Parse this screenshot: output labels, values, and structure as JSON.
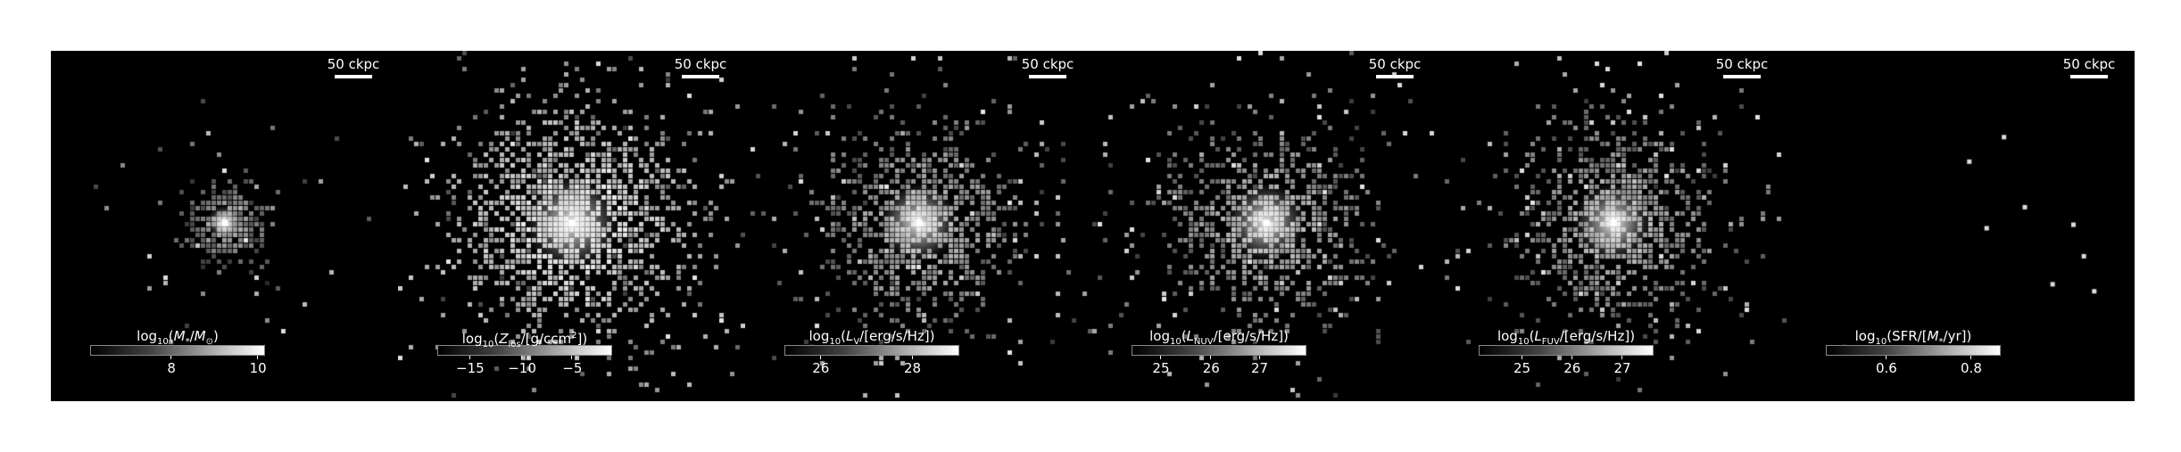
{
  "scale_label": "50 ckpc",
  "panels": [
    {
      "colorbar_title_html": "log<sub>10</sub>(<i>M</i><sub>*</sub>/<i>M</i><sub>⊙</sub>)",
      "ticks": [
        {
          "label": "8",
          "frac": 0.47
        },
        {
          "label": "10",
          "frac": 0.97
        }
      ],
      "style": "compact",
      "seed": 11
    },
    {
      "colorbar_title_html": "log<sub>10</sub>(<i>Z</i><sub>los</sub>/[g/ccm<sup>2</sup>])",
      "ticks": [
        {
          "label": "−15",
          "frac": 0.19
        },
        {
          "label": "−10",
          "frac": 0.49
        },
        {
          "label": "−5",
          "frac": 0.78
        }
      ],
      "style": "wide",
      "seed": 23
    },
    {
      "colorbar_title_html": "log<sub>10</sub>(<i>L</i><sub>V</sub>/[erg/s/Hz])",
      "ticks": [
        {
          "label": "26",
          "frac": 0.21
        },
        {
          "label": "28",
          "frac": 0.74
        }
      ],
      "style": "medium",
      "seed": 37
    },
    {
      "colorbar_title_html": "log<sub>10</sub>(<i>L</i><sub>NUV</sub>/[erg/s/Hz])",
      "ticks": [
        {
          "label": "25",
          "frac": 0.17
        },
        {
          "label": "26",
          "frac": 0.46
        },
        {
          "label": "27",
          "frac": 0.74
        }
      ],
      "style": "medium",
      "seed": 41
    },
    {
      "colorbar_title_html": "log<sub>10</sub>(<i>L</i><sub>FUV</sub>/[erg/s/Hz])",
      "ticks": [
        {
          "label": "25",
          "frac": 0.25
        },
        {
          "label": "26",
          "frac": 0.54
        },
        {
          "label": "27",
          "frac": 0.83
        }
      ],
      "style": "medium",
      "seed": 53
    },
    {
      "colorbar_title_html": "log<sub>10</sub>(SFR/[<i>M</i><sub>*</sub>/yr])",
      "ticks": [
        {
          "label": "0.6",
          "frac": 0.35
        },
        {
          "label": "0.8",
          "frac": 0.84
        }
      ],
      "style": "sparse",
      "seed": 67
    }
  ]
}
